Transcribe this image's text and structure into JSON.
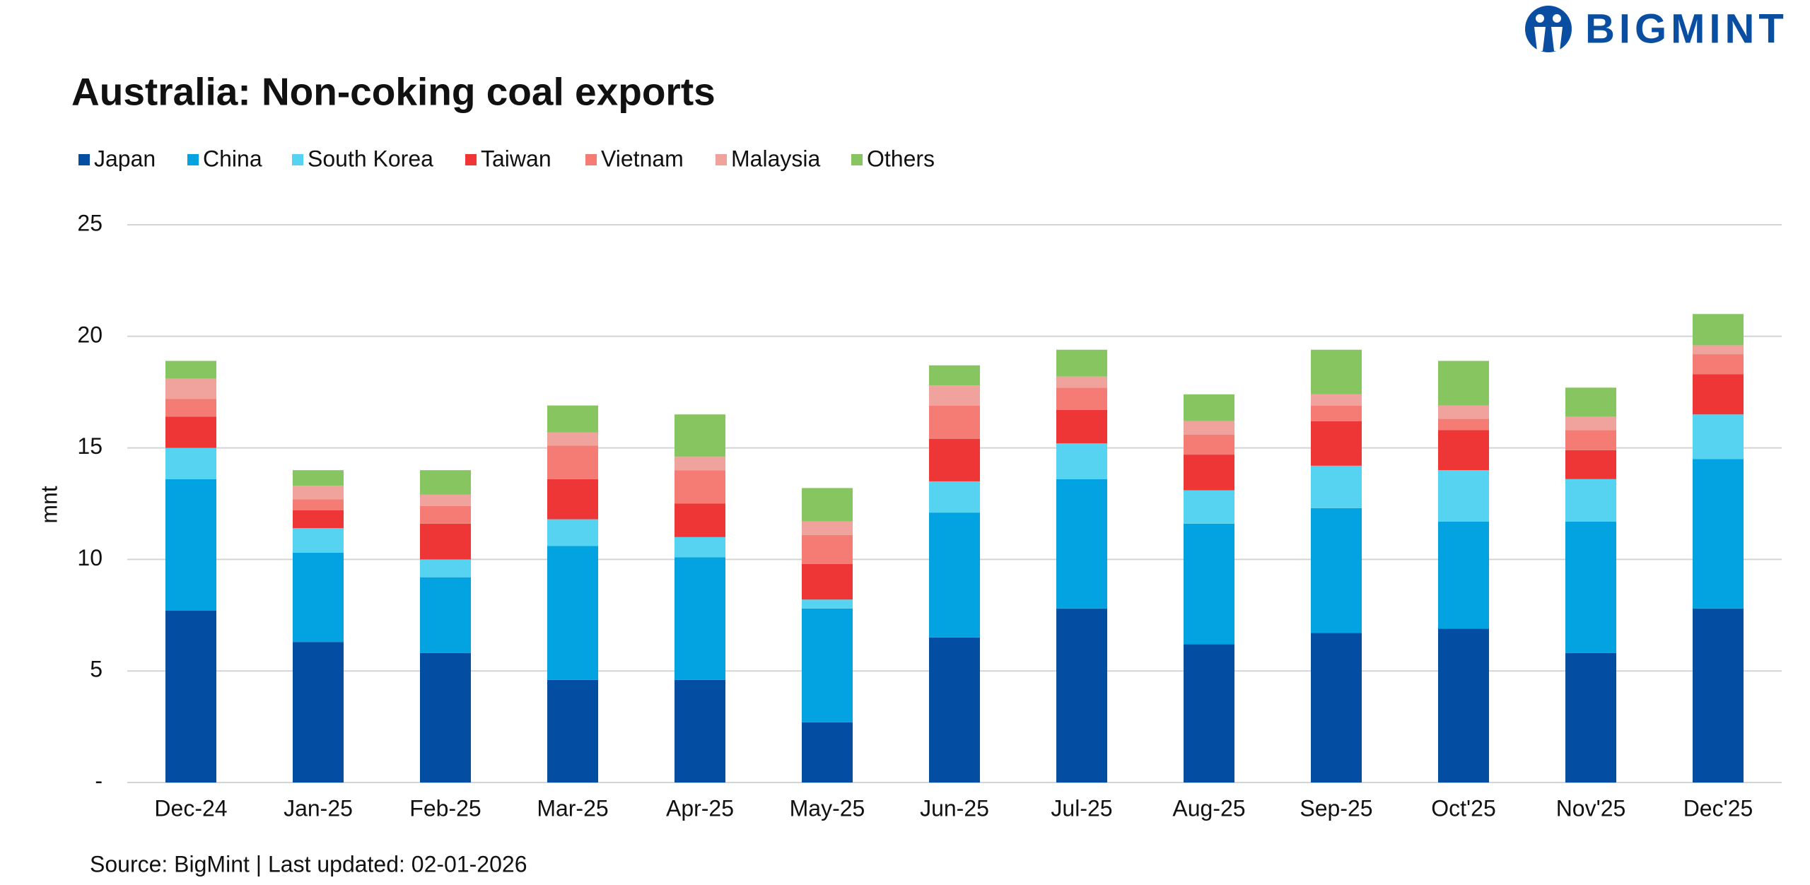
{
  "brand": "BIGMINT",
  "chart_data": {
    "type": "stacked_bar",
    "title": "Australia: Non-coking coal exports",
    "y_label": "mnt",
    "source": "Source: BigMint | Last updated: 02-01-2026",
    "categories": [
      "Dec-24",
      "Jan-25",
      "Feb-25",
      "Mar-25",
      "Apr-25",
      "May-25",
      "Jun-25",
      "Jul-25",
      "Aug-25",
      "Sep-25",
      "Oct'25",
      "Nov'25",
      "Dec'25"
    ],
    "series": [
      {
        "name": "Japan",
        "color": "#034ea2",
        "values": [
          7.7,
          6.3,
          5.8,
          4.6,
          4.6,
          2.7,
          6.5,
          7.8,
          6.2,
          6.7,
          6.9,
          5.8,
          7.8
        ]
      },
      {
        "name": "China",
        "color": "#02a3e0",
        "values": [
          5.9,
          4.0,
          3.4,
          6.0,
          5.5,
          5.1,
          5.6,
          5.8,
          5.4,
          5.6,
          4.8,
          5.9,
          6.7
        ]
      },
      {
        "name": "South Korea",
        "color": "#55d3f0",
        "values": [
          1.4,
          1.1,
          0.8,
          1.2,
          0.9,
          0.4,
          1.4,
          1.6,
          1.5,
          1.9,
          2.3,
          1.9,
          2.0
        ]
      },
      {
        "name": "Taiwan",
        "color": "#ee3636",
        "values": [
          1.4,
          0.8,
          1.6,
          1.8,
          1.5,
          1.6,
          1.9,
          1.5,
          1.6,
          2.0,
          1.8,
          1.3,
          1.8
        ]
      },
      {
        "name": "Vietnam",
        "color": "#f47c74",
        "values": [
          0.8,
          0.5,
          0.8,
          1.5,
          1.5,
          1.3,
          1.5,
          1.0,
          0.9,
          0.7,
          0.5,
          0.9,
          0.9
        ]
      },
      {
        "name": "Malaysia",
        "color": "#f0a39c",
        "values": [
          0.9,
          0.6,
          0.5,
          0.6,
          0.6,
          0.6,
          0.9,
          0.5,
          0.6,
          0.5,
          0.6,
          0.6,
          0.4
        ]
      },
      {
        "name": "Others",
        "color": "#86c560",
        "values": [
          0.8,
          0.7,
          1.1,
          1.2,
          1.9,
          1.5,
          0.9,
          1.2,
          1.2,
          2.0,
          2.0,
          1.3,
          1.4
        ]
      }
    ],
    "ylim": [
      0,
      25
    ],
    "yticks": [
      {
        "value": 0,
        "label": "-"
      },
      5,
      10,
      15,
      20,
      25
    ],
    "grid": true
  }
}
